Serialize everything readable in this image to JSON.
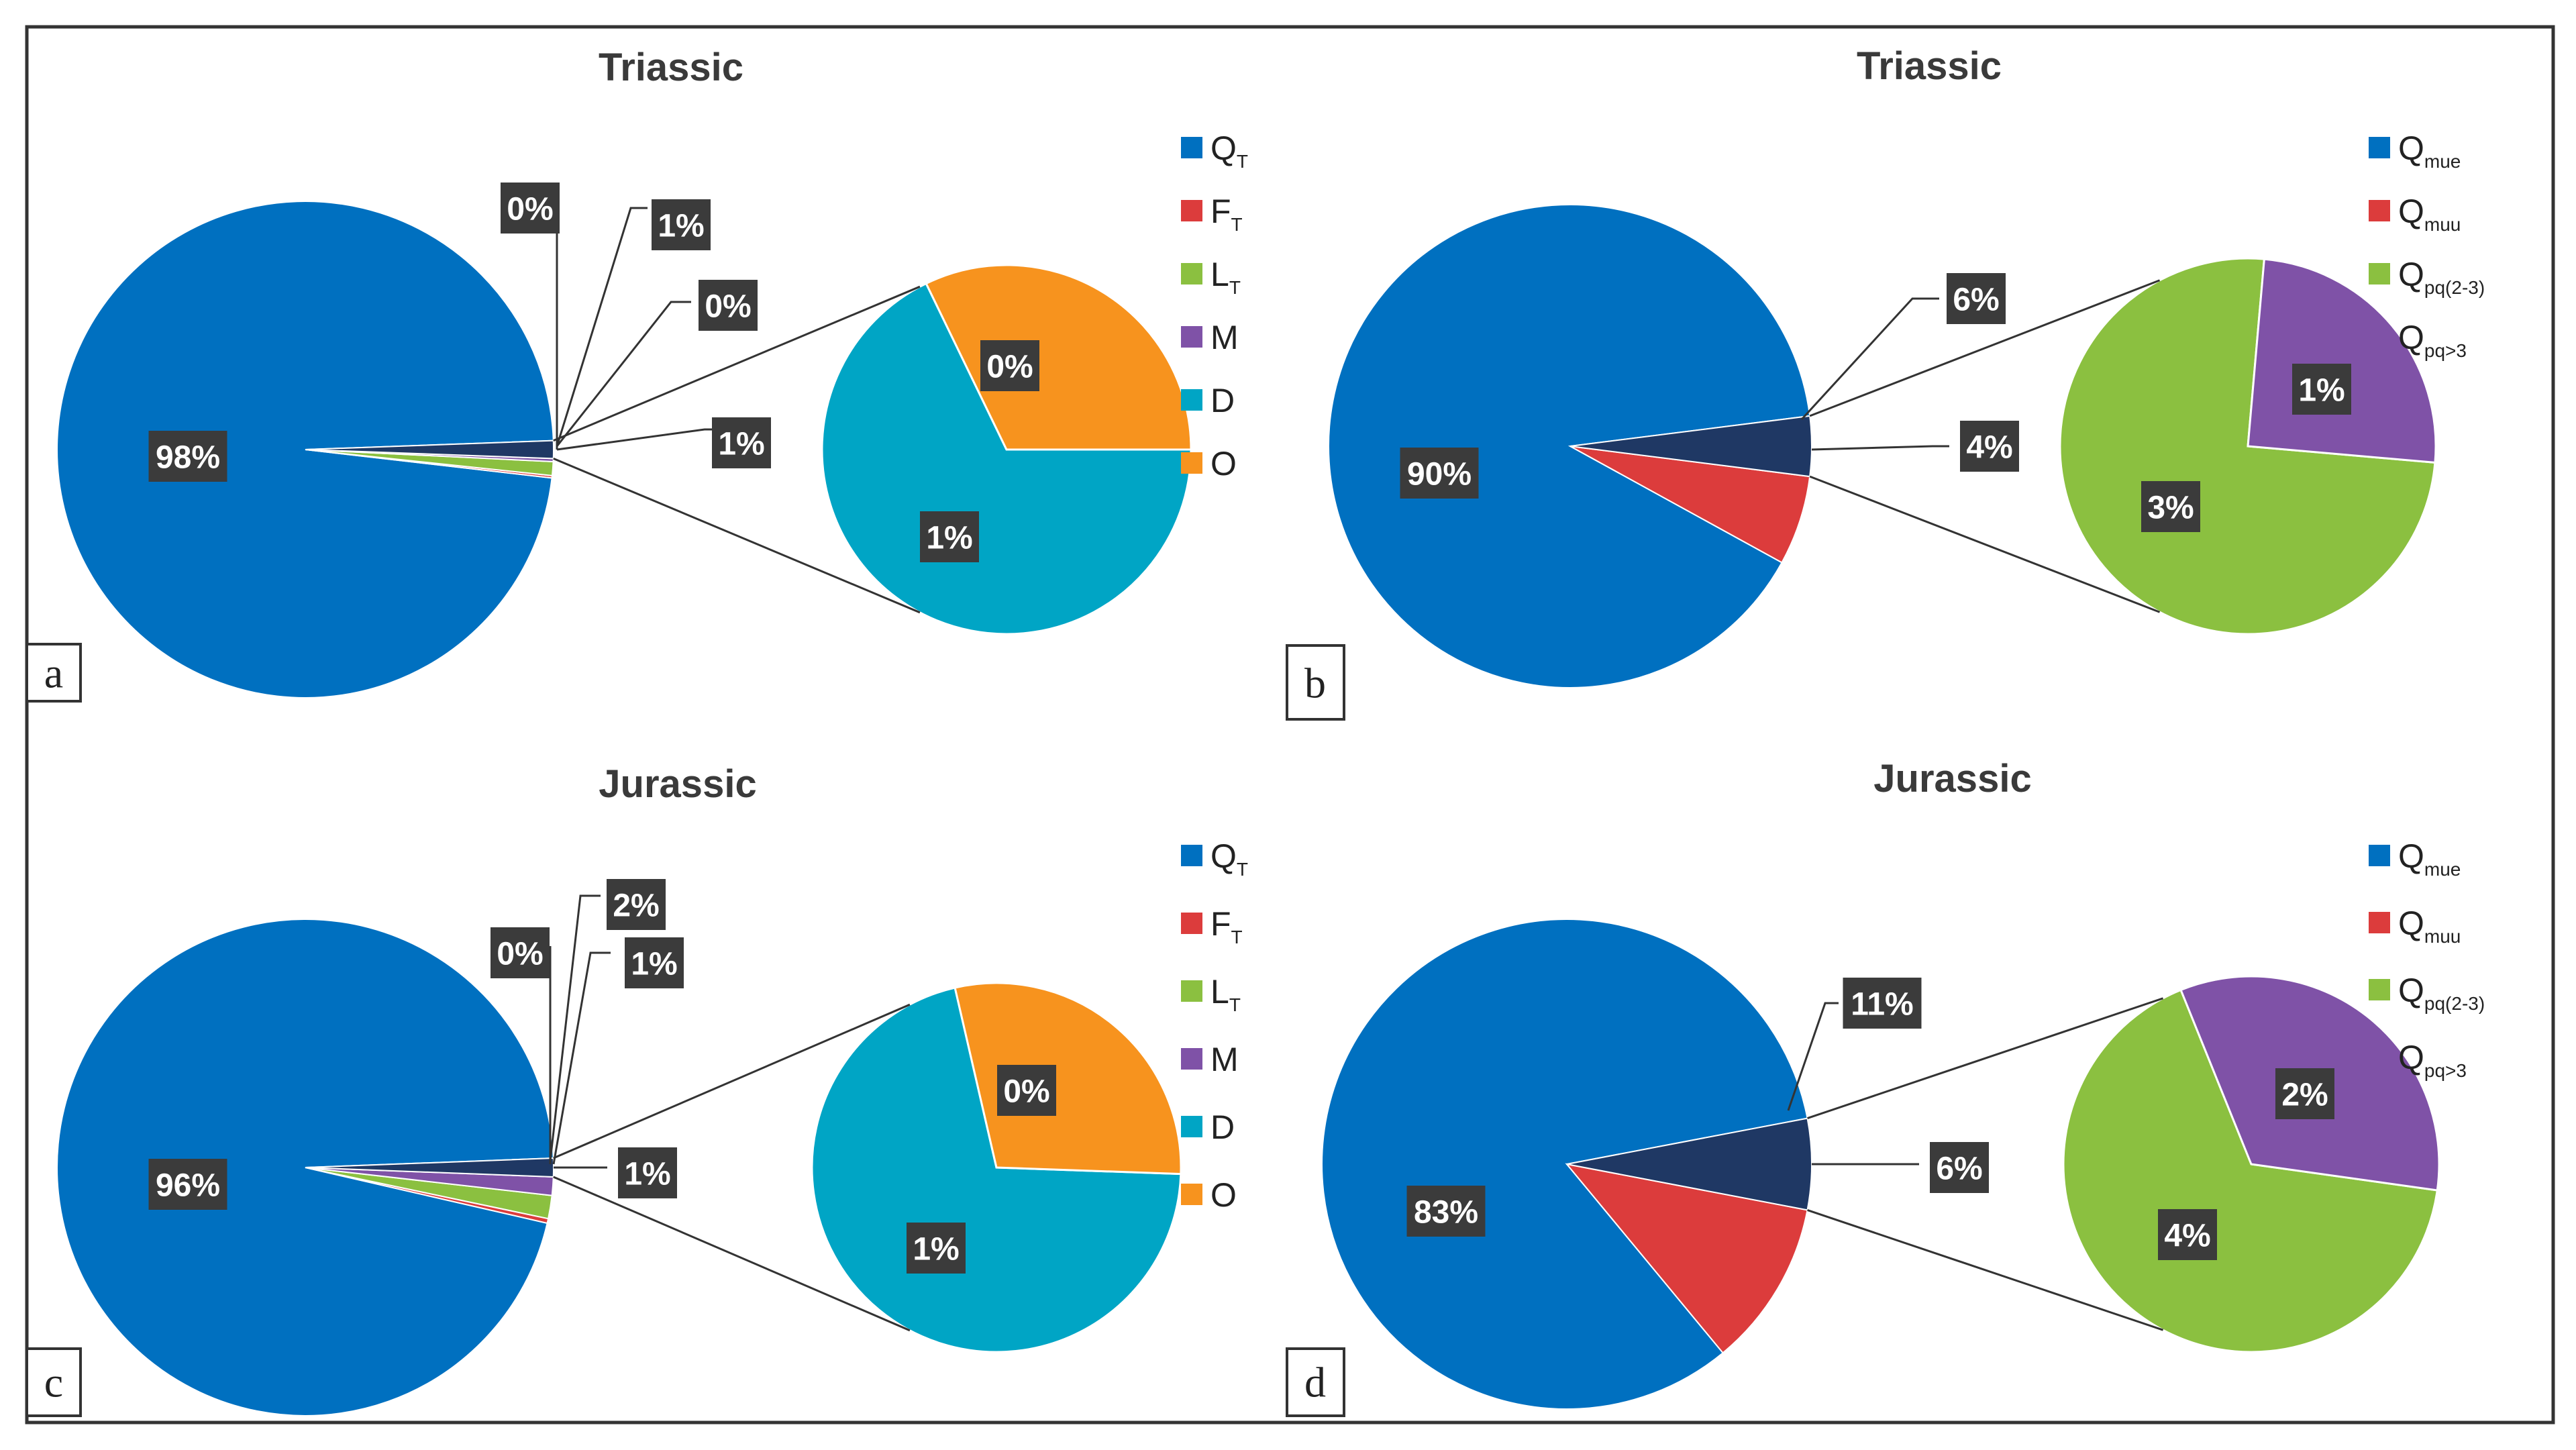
{
  "colors": {
    "Q_T": "#0070c0",
    "F_T": "#dc3c3c",
    "L_T": "#8bc040",
    "M": "#7f52a7",
    "D": "#00a5c5",
    "O": "#f7931e",
    "Q_mue": "#0070c0",
    "Q_muu": "#dc3c3c",
    "Q_pq23": "#8bc040",
    "Q_pq3": "#7f52a7"
  },
  "chart_data": [
    {
      "panel": "a",
      "type": "pie-of-pie",
      "title": "Triassic",
      "legend": [
        {
          "key": "Q_T",
          "main": "Q",
          "sub": "T"
        },
        {
          "key": "F_T",
          "main": "F",
          "sub": "T"
        },
        {
          "key": "L_T",
          "main": "L",
          "sub": "T"
        },
        {
          "key": "M",
          "main": "M",
          "sub": ""
        },
        {
          "key": "D",
          "main": "D",
          "sub": ""
        },
        {
          "key": "O",
          "main": "O",
          "sub": ""
        }
      ],
      "main_pie": [
        {
          "key": "Q_T",
          "value": 97.6,
          "label": "98%"
        },
        {
          "key": "F_T",
          "value": 0.15,
          "label": "0%"
        },
        {
          "key": "L_T",
          "value": 0.9,
          "label": "1%"
        },
        {
          "key": "M",
          "value": 0.2,
          "label": "0%"
        },
        {
          "key": "other",
          "value": 1.15,
          "label": "1%"
        }
      ],
      "secondary_pie": [
        {
          "key": "D",
          "value": 0.78,
          "label": "1%"
        },
        {
          "key": "O",
          "value": 0.37,
          "label": "0%"
        }
      ]
    },
    {
      "panel": "b",
      "type": "pie-of-pie",
      "title": "Triassic",
      "legend": [
        {
          "key": "Q_mue",
          "main": "Q",
          "sub": "mue"
        },
        {
          "key": "Q_muu",
          "main": "Q",
          "sub": "muu"
        },
        {
          "key": "Q_pq23",
          "main": "Q",
          "sub": "pq(2-3)"
        },
        {
          "key": "Q_pq3",
          "main": "Q",
          "sub": "pq>3"
        }
      ],
      "main_pie": [
        {
          "key": "Q_mue",
          "value": 90,
          "label": "90%"
        },
        {
          "key": "Q_muu",
          "value": 6,
          "label": "6%"
        },
        {
          "key": "other",
          "value": 4,
          "label": "4%"
        }
      ],
      "secondary_pie": [
        {
          "key": "Q_pq23",
          "value": 3,
          "label": "3%"
        },
        {
          "key": "Q_pq3",
          "value": 1,
          "label": "1%"
        }
      ]
    },
    {
      "panel": "c",
      "type": "pie-of-pie",
      "title": "Jurassic",
      "legend": [
        {
          "key": "Q_T",
          "main": "Q",
          "sub": "T"
        },
        {
          "key": "F_T",
          "main": "F",
          "sub": "T"
        },
        {
          "key": "L_T",
          "main": "L",
          "sub": "T"
        },
        {
          "key": "M",
          "main": "M",
          "sub": ""
        },
        {
          "key": "D",
          "main": "D",
          "sub": ""
        },
        {
          "key": "O",
          "main": "O",
          "sub": ""
        }
      ],
      "main_pie": [
        {
          "key": "Q_T",
          "value": 95.8,
          "label": "96%"
        },
        {
          "key": "F_T",
          "value": 0.3,
          "label": "0%"
        },
        {
          "key": "L_T",
          "value": 1.5,
          "label": "2%"
        },
        {
          "key": "M",
          "value": 1.2,
          "label": "1%"
        },
        {
          "key": "other",
          "value": 1.2,
          "label": "1%"
        }
      ],
      "secondary_pie": [
        {
          "key": "D",
          "value": 0.85,
          "label": "1%"
        },
        {
          "key": "O",
          "value": 0.35,
          "label": "0%"
        }
      ]
    },
    {
      "panel": "d",
      "type": "pie-of-pie",
      "title": "Jurassic",
      "legend": [
        {
          "key": "Q_mue",
          "main": "Q",
          "sub": "mue"
        },
        {
          "key": "Q_muu",
          "main": "Q",
          "sub": "muu"
        },
        {
          "key": "Q_pq23",
          "main": "Q",
          "sub": "pq(2-3)"
        },
        {
          "key": "Q_pq3",
          "main": "Q",
          "sub": "pq>3"
        }
      ],
      "main_pie": [
        {
          "key": "Q_mue",
          "value": 83,
          "label": "83%"
        },
        {
          "key": "Q_muu",
          "value": 11,
          "label": "11%"
        },
        {
          "key": "other",
          "value": 6,
          "label": "6%"
        }
      ],
      "secondary_pie": [
        {
          "key": "Q_pq23",
          "value": 4,
          "label": "4%"
        },
        {
          "key": "Q_pq3",
          "value": 2,
          "label": "2%"
        }
      ]
    }
  ]
}
